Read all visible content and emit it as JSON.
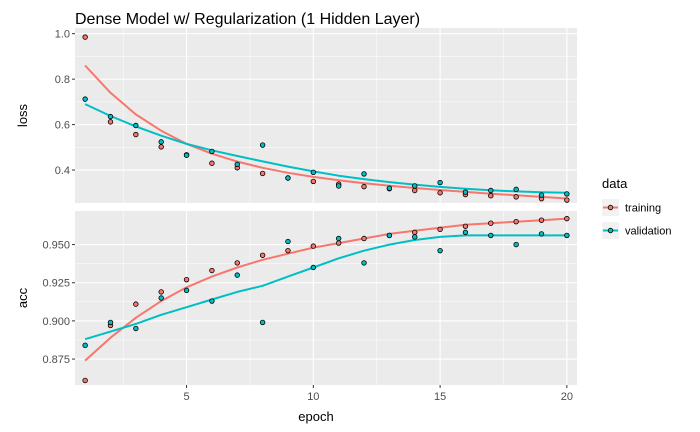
{
  "chart_data": {
    "type": "scatter",
    "title": "Dense Model w/ Regularization (1 Hidden Layer)",
    "xlabel": "epoch",
    "xlim": [
      0.6,
      20.4
    ],
    "x_ticks": [
      5,
      10,
      15,
      20
    ],
    "grid": true,
    "x": [
      1,
      2,
      3,
      4,
      5,
      6,
      7,
      8,
      9,
      10,
      11,
      12,
      13,
      14,
      15,
      16,
      17,
      18,
      19,
      20
    ],
    "panels": [
      {
        "label": "loss",
        "ylim": [
          0.255,
          1.025
        ],
        "y_ticks": [
          0.4,
          0.6,
          0.8,
          1.0
        ],
        "y_tick_labels": [
          "0.4",
          "0.6",
          "0.8",
          "1.0"
        ],
        "series": [
          {
            "name": "training",
            "values": [
              0.985,
              0.612,
              0.556,
              0.502,
              0.467,
              0.43,
              0.41,
              0.385,
              0.365,
              0.35,
              0.338,
              0.327,
              0.318,
              0.31,
              0.3,
              0.292,
              0.287,
              0.282,
              0.274,
              0.268
            ],
            "smooth": [
              0.86,
              0.74,
              0.645,
              0.573,
              0.515,
              0.472,
              0.437,
              0.41,
              0.388,
              0.37,
              0.355,
              0.342,
              0.331,
              0.321,
              0.312,
              0.304,
              0.296,
              0.289,
              0.282,
              0.275
            ]
          },
          {
            "name": "validation",
            "values": [
              0.712,
              0.635,
              0.596,
              0.524,
              0.465,
              0.482,
              0.425,
              0.51,
              0.365,
              0.39,
              0.33,
              0.383,
              0.32,
              0.33,
              0.345,
              0.303,
              0.31,
              0.315,
              0.29,
              0.295
            ],
            "smooth": [
              0.69,
              0.638,
              0.592,
              0.551,
              0.515,
              0.487,
              0.462,
              0.438,
              0.415,
              0.394,
              0.375,
              0.36,
              0.347,
              0.336,
              0.326,
              0.318,
              0.311,
              0.306,
              0.302,
              0.3
            ]
          }
        ]
      },
      {
        "label": "acc",
        "ylim": [
          0.858,
          0.972
        ],
        "y_ticks": [
          0.875,
          0.9,
          0.925,
          0.95
        ],
        "y_tick_labels": [
          "0.875",
          "0.900",
          "0.925",
          "0.950"
        ],
        "series": [
          {
            "name": "training",
            "values": [
              0.861,
              0.897,
              0.911,
              0.919,
              0.927,
              0.933,
              0.938,
              0.943,
              0.946,
              0.949,
              0.951,
              0.954,
              0.956,
              0.958,
              0.96,
              0.962,
              0.964,
              0.965,
              0.966,
              0.967
            ],
            "smooth": [
              0.874,
              0.889,
              0.902,
              0.913,
              0.922,
              0.929,
              0.935,
              0.94,
              0.944,
              0.948,
              0.951,
              0.954,
              0.957,
              0.959,
              0.961,
              0.963,
              0.964,
              0.965,
              0.966,
              0.967
            ]
          },
          {
            "name": "validation",
            "values": [
              0.884,
              0.899,
              0.895,
              0.915,
              0.92,
              0.913,
              0.93,
              0.899,
              0.952,
              0.935,
              0.954,
              0.938,
              0.956,
              0.955,
              0.946,
              0.958,
              0.956,
              0.95,
              0.957,
              0.956
            ],
            "smooth": [
              0.888,
              0.893,
              0.898,
              0.904,
              0.909,
              0.914,
              0.919,
              0.923,
              0.929,
              0.935,
              0.941,
              0.946,
              0.95,
              0.953,
              0.955,
              0.956,
              0.956,
              0.956,
              0.956,
              0.956
            ]
          }
        ]
      }
    ],
    "legend": {
      "title": "data",
      "position": "right",
      "items": [
        {
          "name": "training",
          "color": "#F8766D"
        },
        {
          "name": "validation",
          "color": "#00BFC4"
        }
      ]
    },
    "colors": {
      "panel_background": "#EBEBEB",
      "grid": "#FFFFFF",
      "point_outline": "#000000"
    }
  }
}
